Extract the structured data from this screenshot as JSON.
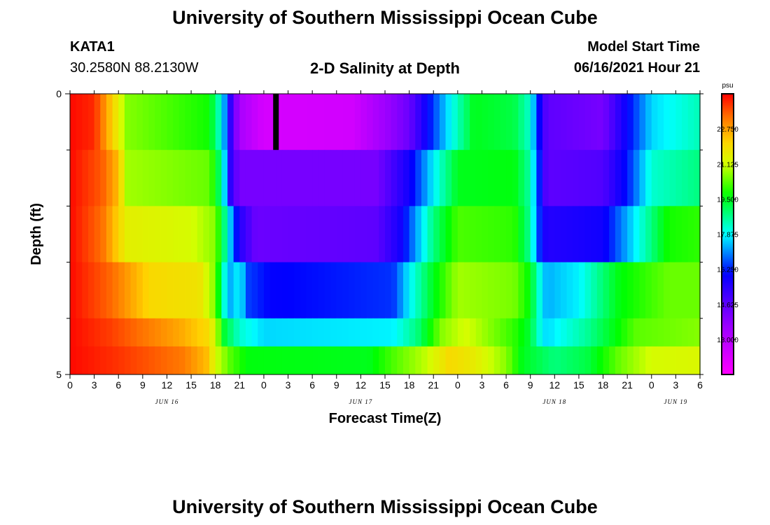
{
  "header": {
    "title": "University of Southern Mississippi Ocean Cube",
    "station": "KATA1",
    "coords": "30.2580N  88.2130W",
    "subtitle": "2-D Salinity at Depth",
    "model_start_label": "Model Start Time",
    "model_start_value": "06/16/2021 Hour 21",
    "footer_title": "University of Southern Mississippi Ocean Cube"
  },
  "chart_data": {
    "type": "heatmap",
    "title": "2-D Salinity at Depth",
    "xlabel": "Forecast Time(Z)",
    "ylabel": "Depth (ft)",
    "x_tick_labels": [
      "0",
      "3",
      "6",
      "9",
      "12",
      "15",
      "18",
      "21",
      "0",
      "3",
      "6",
      "9",
      "12",
      "15",
      "18",
      "21",
      "0",
      "3",
      "6",
      "9",
      "12",
      "15",
      "18",
      "21",
      "0",
      "3",
      "6"
    ],
    "x_day_labels": [
      {
        "label": "JUN 16",
        "hour": 12
      },
      {
        "label": "JUN 17",
        "hour": 36
      },
      {
        "label": "JUN 18",
        "hour": 60
      },
      {
        "label": "JUN 19",
        "hour": 75
      }
    ],
    "x_range_hours": [
      0,
      78
    ],
    "y_range": [
      0,
      5
    ],
    "y_tick_labels": [
      "0",
      "5"
    ],
    "y_minor_ticks": [
      1,
      2,
      3,
      4
    ],
    "depth_bins": [
      0,
      1,
      2,
      3,
      4,
      5
    ],
    "current_time_marker_hour": 25.5,
    "colorbar": {
      "unit": "psu",
      "min": 11.375,
      "max": 24.375,
      "tick_labels": [
        "22.750",
        "21.125",
        "19.500",
        "17.875",
        "16.250",
        "14.625",
        "13.000"
      ],
      "tick_values": [
        22.75,
        21.125,
        19.5,
        17.875,
        16.25,
        14.625,
        13.0
      ]
    },
    "rows": [
      {
        "depth_from": 0,
        "depth_to": 1,
        "keys": [
          [
            0,
            24.3
          ],
          [
            3,
            24.0
          ],
          [
            6,
            21.5
          ],
          [
            7,
            20.6
          ],
          [
            17,
            19.8
          ],
          [
            18,
            19.0
          ],
          [
            19,
            17.5
          ],
          [
            20,
            15.0
          ],
          [
            21,
            13.3
          ],
          [
            24,
            12.3
          ],
          [
            35,
            12.4
          ],
          [
            42,
            14.4
          ],
          [
            45,
            16.5
          ],
          [
            47,
            17.8
          ],
          [
            50,
            19.5
          ],
          [
            55,
            19.2
          ],
          [
            57,
            18.2
          ],
          [
            58,
            16.2
          ],
          [
            59,
            14.6
          ],
          [
            66,
            14.2
          ],
          [
            69,
            16.0
          ],
          [
            72,
            17.6
          ],
          [
            78,
            18.4
          ]
        ]
      },
      {
        "depth_from": 1,
        "depth_to": 2,
        "keys": [
          [
            0,
            24.3
          ],
          [
            4,
            23.5
          ],
          [
            6,
            22.4
          ],
          [
            7,
            20.8
          ],
          [
            17,
            20.4
          ],
          [
            18,
            19.8
          ],
          [
            19,
            18.0
          ],
          [
            20,
            15.0
          ],
          [
            21,
            14.2
          ],
          [
            38,
            14.2
          ],
          [
            42,
            15.8
          ],
          [
            45,
            17.8
          ],
          [
            48,
            19.5
          ],
          [
            55,
            19.6
          ],
          [
            57,
            18.5
          ],
          [
            58,
            16.5
          ],
          [
            59,
            14.6
          ],
          [
            66,
            14.8
          ],
          [
            69,
            16.2
          ],
          [
            72,
            18.2
          ],
          [
            78,
            18.8
          ]
        ]
      },
      {
        "depth_from": 2,
        "depth_to": 3,
        "keys": [
          [
            0,
            24.3
          ],
          [
            4,
            23.3
          ],
          [
            7,
            21.5
          ],
          [
            15,
            21.2
          ],
          [
            18,
            20.6
          ],
          [
            19,
            19.0
          ],
          [
            20,
            17.2
          ],
          [
            21,
            15.5
          ],
          [
            23,
            14.4
          ],
          [
            38,
            14.6
          ],
          [
            41,
            15.8
          ],
          [
            45,
            18.8
          ],
          [
            48,
            20.2
          ],
          [
            55,
            20.0
          ],
          [
            57,
            18.6
          ],
          [
            58,
            16.5
          ],
          [
            59,
            15.5
          ],
          [
            66,
            15.8
          ],
          [
            70,
            17.8
          ],
          [
            74,
            19.8
          ],
          [
            78,
            20.0
          ]
        ]
      },
      {
        "depth_from": 3,
        "depth_to": 4,
        "keys": [
          [
            0,
            24.3
          ],
          [
            5,
            23.4
          ],
          [
            10,
            22.0
          ],
          [
            16,
            21.8
          ],
          [
            18,
            20.5
          ],
          [
            19,
            18.2
          ],
          [
            20,
            17.2
          ],
          [
            21,
            18.0
          ],
          [
            22,
            16.5
          ],
          [
            25,
            16.0
          ],
          [
            40,
            16.4
          ],
          [
            42,
            17.8
          ],
          [
            45,
            19.5
          ],
          [
            48,
            20.8
          ],
          [
            55,
            20.5
          ],
          [
            57,
            19.6
          ],
          [
            58,
            18.2
          ],
          [
            59,
            17.3
          ],
          [
            63,
            17.8
          ],
          [
            68,
            19.6
          ],
          [
            74,
            20.4
          ],
          [
            78,
            20.4
          ]
        ]
      },
      {
        "depth_from": 4,
        "depth_to": 5,
        "keys": [
          [
            0,
            24.3
          ],
          [
            5,
            23.8
          ],
          [
            14,
            22.6
          ],
          [
            17,
            22.0
          ],
          [
            18,
            21.2
          ],
          [
            19,
            19.4
          ],
          [
            21,
            18.2
          ],
          [
            24,
            17.6
          ],
          [
            40,
            17.8
          ],
          [
            43,
            18.8
          ],
          [
            46,
            20.6
          ],
          [
            49,
            21.2
          ],
          [
            52,
            20.6
          ],
          [
            55,
            20.0
          ],
          [
            57,
            19.3
          ],
          [
            58,
            18.2
          ],
          [
            59,
            17.6
          ],
          [
            64,
            18.6
          ],
          [
            70,
            20.3
          ],
          [
            78,
            20.6
          ]
        ]
      },
      {
        "depth_from": 4.5,
        "depth_to": 5,
        "keys": [
          [
            0,
            24.3
          ],
          [
            6,
            23.9
          ],
          [
            14,
            23.2
          ],
          [
            17,
            22.4
          ],
          [
            18,
            21.2
          ],
          [
            20,
            20.2
          ],
          [
            22,
            19.6
          ],
          [
            37,
            19.5
          ],
          [
            40,
            20.2
          ],
          [
            44,
            21.0
          ],
          [
            47,
            22.0
          ],
          [
            50,
            21.6
          ],
          [
            54,
            20.6
          ],
          [
            56,
            19.5
          ],
          [
            60,
            18.8
          ],
          [
            64,
            19.2
          ],
          [
            68,
            20.4
          ],
          [
            72,
            21.2
          ],
          [
            78,
            21.3
          ]
        ]
      }
    ]
  }
}
